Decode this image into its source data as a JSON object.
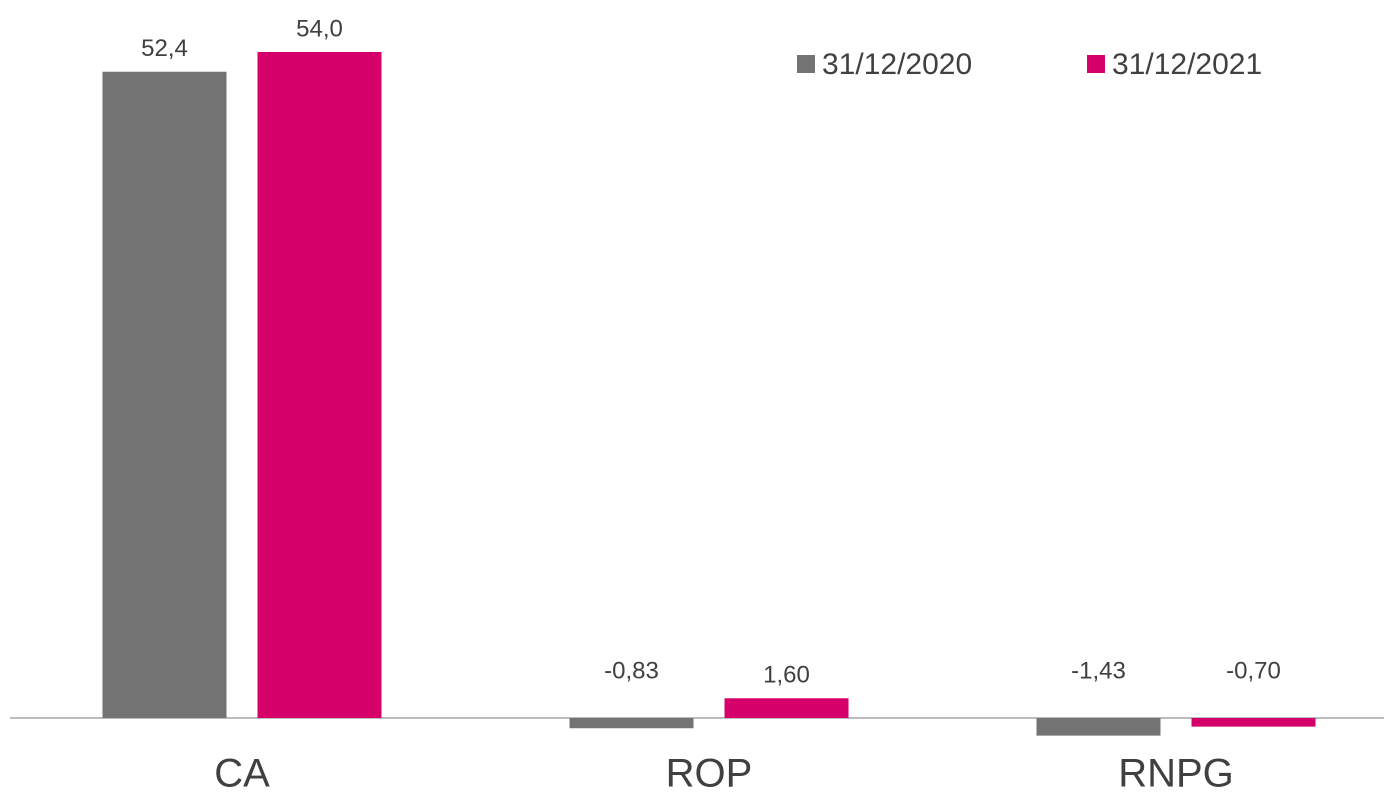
{
  "chart_data": {
    "type": "bar",
    "categories": [
      "CA",
      "ROP",
      "RNPG"
    ],
    "series": [
      {
        "name": "31/12/2020",
        "color": "#737373",
        "values": [
          52.4,
          -0.83,
          -1.43
        ],
        "value_labels": [
          "52,4",
          "-0,83",
          "-1,43"
        ]
      },
      {
        "name": "31/12/2021",
        "color": "#d6006b",
        "values": [
          54.0,
          1.6,
          -0.7
        ],
        "value_labels": [
          "54,0",
          "1,60",
          "-0,70"
        ]
      }
    ],
    "legend": "top-right"
  }
}
